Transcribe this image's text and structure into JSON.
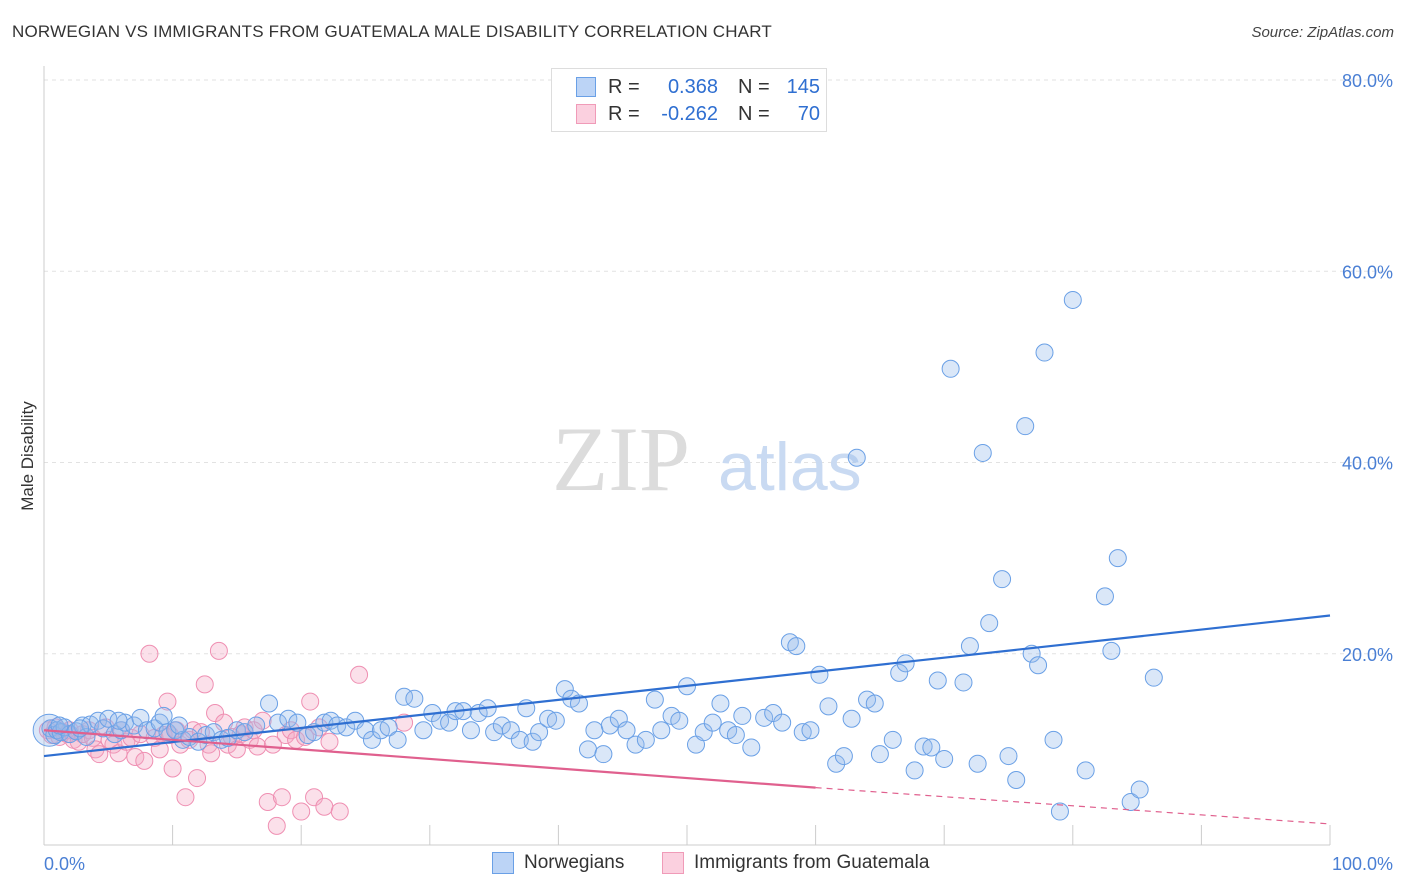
{
  "header": {
    "title": "NORWEGIAN VS IMMIGRANTS FROM GUATEMALA MALE DISABILITY CORRELATION CHART",
    "source": "Source: ZipAtlas.com"
  },
  "watermark": {
    "part1": "ZIP",
    "part2": "atlas"
  },
  "colors": {
    "blue": "#6aa0e6",
    "blue_line": "#2f6fd1",
    "pink": "#f09bb8",
    "pink_line": "#e0608e",
    "axis_text": "#4a7fd4"
  },
  "legend": {
    "rows": [
      {
        "r_label": "R =",
        "r_value": "0.368",
        "n_label": "N =",
        "n_value": "145"
      },
      {
        "r_label": "R =",
        "r_value": "-0.262",
        "n_label": "N =",
        "n_value": "70"
      }
    ]
  },
  "bottom_legend": {
    "series1": "Norwegians",
    "series2": "Immigrants from Guatemala"
  },
  "chart_data": {
    "type": "scatter",
    "title": "NORWEGIAN VS IMMIGRANTS FROM GUATEMALA MALE DISABILITY CORRELATION CHART",
    "xlabel": "",
    "ylabel": "Male Disability",
    "xlim": [
      0,
      100
    ],
    "ylim": [
      0,
      80
    ],
    "x_tick_labels": [
      "0.0%",
      "100.0%"
    ],
    "y_ticks": [
      20,
      40,
      60,
      80
    ],
    "y_tick_labels": [
      "20.0%",
      "40.0%",
      "60.0%",
      "80.0%"
    ],
    "grid": true,
    "legend_position": "top-center",
    "series": [
      {
        "name": "Norwegians",
        "r": 0.368,
        "n": 145,
        "trend": {
          "x": [
            0,
            100
          ],
          "y": [
            9.3,
            24.0
          ],
          "style": "solid"
        },
        "points": [
          [
            0.5,
            12.2
          ],
          [
            0.8,
            11.5
          ],
          [
            1.0,
            12.0
          ],
          [
            1.3,
            11.8
          ],
          [
            1.6,
            12.3
          ],
          [
            2.0,
            11.6
          ],
          [
            2.5,
            11.9
          ],
          [
            3.0,
            12.5
          ],
          [
            3.3,
            11.3
          ],
          [
            3.6,
            12.6
          ],
          [
            4.2,
            13.0
          ],
          [
            4.6,
            12.2
          ],
          [
            5.0,
            13.2
          ],
          [
            5.5,
            11.6
          ],
          [
            6.0,
            12.0
          ],
          [
            6.3,
            12.8
          ],
          [
            7.0,
            12.5
          ],
          [
            7.5,
            13.3
          ],
          [
            8.0,
            12.0
          ],
          [
            8.6,
            12.2
          ],
          [
            9.0,
            12.8
          ],
          [
            9.6,
            11.8
          ],
          [
            10.2,
            12.0
          ],
          [
            10.8,
            11.0
          ],
          [
            11.3,
            11.3
          ],
          [
            12.0,
            10.8
          ],
          [
            12.6,
            11.5
          ],
          [
            13.2,
            11.8
          ],
          [
            13.8,
            11.0
          ],
          [
            14.3,
            11.2
          ],
          [
            15.0,
            12.0
          ],
          [
            15.6,
            11.8
          ],
          [
            16.5,
            12.5
          ],
          [
            17.5,
            14.8
          ],
          [
            18.2,
            12.8
          ],
          [
            19.0,
            13.2
          ],
          [
            19.7,
            12.8
          ],
          [
            20.5,
            11.5
          ],
          [
            21.0,
            11.8
          ],
          [
            21.8,
            12.8
          ],
          [
            22.3,
            13.0
          ],
          [
            22.8,
            12.5
          ],
          [
            23.5,
            12.3
          ],
          [
            24.2,
            13.0
          ],
          [
            25.0,
            12.0
          ],
          [
            25.5,
            11.0
          ],
          [
            26.2,
            12.0
          ],
          [
            26.8,
            12.3
          ],
          [
            27.5,
            11.0
          ],
          [
            28.0,
            15.5
          ],
          [
            28.8,
            15.3
          ],
          [
            29.5,
            12.0
          ],
          [
            30.2,
            13.8
          ],
          [
            30.8,
            13.0
          ],
          [
            31.5,
            12.8
          ],
          [
            32.0,
            14.0
          ],
          [
            32.6,
            14.0
          ],
          [
            33.2,
            12.0
          ],
          [
            33.8,
            13.8
          ],
          [
            34.5,
            14.3
          ],
          [
            35.0,
            11.8
          ],
          [
            35.6,
            12.5
          ],
          [
            36.3,
            12.0
          ],
          [
            37.0,
            11.0
          ],
          [
            37.5,
            14.3
          ],
          [
            38.0,
            10.8
          ],
          [
            38.5,
            11.8
          ],
          [
            39.2,
            13.2
          ],
          [
            39.8,
            13.0
          ],
          [
            40.5,
            16.3
          ],
          [
            41.0,
            15.3
          ],
          [
            41.6,
            14.8
          ],
          [
            42.3,
            10.0
          ],
          [
            42.8,
            12.0
          ],
          [
            43.5,
            9.5
          ],
          [
            44.0,
            12.5
          ],
          [
            44.7,
            13.2
          ],
          [
            45.3,
            12.0
          ],
          [
            46.0,
            10.5
          ],
          [
            46.8,
            11.0
          ],
          [
            47.5,
            15.2
          ],
          [
            48.0,
            12.0
          ],
          [
            48.8,
            13.5
          ],
          [
            49.4,
            13.0
          ],
          [
            50.0,
            16.6
          ],
          [
            50.7,
            10.5
          ],
          [
            51.3,
            11.8
          ],
          [
            52.0,
            12.8
          ],
          [
            52.6,
            14.8
          ],
          [
            53.2,
            12.0
          ],
          [
            53.8,
            11.5
          ],
          [
            54.3,
            13.5
          ],
          [
            55.0,
            10.2
          ],
          [
            56.0,
            13.3
          ],
          [
            56.7,
            13.8
          ],
          [
            57.4,
            12.8
          ],
          [
            58.0,
            21.2
          ],
          [
            58.5,
            20.8
          ],
          [
            59.0,
            11.8
          ],
          [
            59.6,
            12.0
          ],
          [
            60.3,
            17.8
          ],
          [
            61.0,
            14.5
          ],
          [
            61.6,
            8.5
          ],
          [
            62.2,
            9.3
          ],
          [
            62.8,
            13.2
          ],
          [
            63.2,
            40.5
          ],
          [
            64.0,
            15.2
          ],
          [
            64.6,
            14.8
          ],
          [
            65.0,
            9.5
          ],
          [
            66.0,
            11.0
          ],
          [
            66.5,
            18.0
          ],
          [
            67.0,
            19.0
          ],
          [
            67.7,
            7.8
          ],
          [
            68.4,
            10.3
          ],
          [
            69.0,
            10.2
          ],
          [
            69.5,
            17.2
          ],
          [
            70.0,
            9.0
          ],
          [
            70.5,
            49.8
          ],
          [
            71.5,
            17.0
          ],
          [
            72.0,
            20.8
          ],
          [
            72.6,
            8.5
          ],
          [
            73.0,
            41.0
          ],
          [
            73.5,
            23.2
          ],
          [
            74.5,
            27.8
          ],
          [
            75.0,
            9.3
          ],
          [
            75.6,
            6.8
          ],
          [
            76.3,
            43.8
          ],
          [
            76.8,
            20.0
          ],
          [
            77.3,
            18.8
          ],
          [
            77.8,
            51.5
          ],
          [
            78.5,
            11.0
          ],
          [
            79.0,
            3.5
          ],
          [
            80.0,
            57.0
          ],
          [
            81.0,
            7.8
          ],
          [
            82.5,
            26.0
          ],
          [
            83.0,
            20.3
          ],
          [
            83.5,
            30.0
          ],
          [
            84.5,
            4.5
          ],
          [
            85.2,
            5.8
          ],
          [
            86.3,
            17.5
          ],
          [
            1.2,
            12.5
          ],
          [
            2.8,
            12.2
          ],
          [
            5.8,
            13.0
          ],
          [
            9.3,
            13.5
          ],
          [
            10.5,
            12.5
          ]
        ]
      },
      {
        "name": "Immigrants from Guatemala",
        "r": -0.262,
        "n": 70,
        "trend": {
          "x": [
            0,
            60,
            100
          ],
          "y": [
            12.0,
            6.0,
            2.2
          ],
          "style": "solid-then-dashed"
        },
        "points": [
          [
            0.3,
            12.0
          ],
          [
            0.6,
            11.5
          ],
          [
            0.9,
            12.3
          ],
          [
            1.2,
            11.3
          ],
          [
            1.5,
            11.8
          ],
          [
            1.8,
            11.6
          ],
          [
            2.0,
            12.0
          ],
          [
            2.3,
            11.0
          ],
          [
            2.7,
            10.8
          ],
          [
            3.0,
            11.6
          ],
          [
            3.5,
            12.0
          ],
          [
            3.8,
            11.2
          ],
          [
            4.0,
            10.0
          ],
          [
            4.3,
            9.5
          ],
          [
            4.8,
            12.3
          ],
          [
            5.1,
            11.0
          ],
          [
            5.4,
            10.5
          ],
          [
            5.8,
            9.6
          ],
          [
            6.0,
            12.0
          ],
          [
            6.4,
            10.8
          ],
          [
            6.8,
            11.2
          ],
          [
            7.1,
            9.2
          ],
          [
            7.5,
            11.6
          ],
          [
            7.8,
            8.8
          ],
          [
            8.2,
            20.0
          ],
          [
            8.6,
            11.2
          ],
          [
            9.0,
            10.0
          ],
          [
            9.3,
            11.5
          ],
          [
            9.6,
            15.0
          ],
          [
            9.8,
            11.5
          ],
          [
            10.0,
            8.0
          ],
          [
            10.3,
            12.0
          ],
          [
            10.6,
            10.5
          ],
          [
            11.0,
            5.0
          ],
          [
            11.3,
            11.0
          ],
          [
            11.6,
            12.0
          ],
          [
            11.9,
            7.0
          ],
          [
            12.2,
            11.8
          ],
          [
            12.5,
            16.8
          ],
          [
            12.8,
            10.5
          ],
          [
            13.0,
            9.6
          ],
          [
            13.3,
            13.8
          ],
          [
            13.6,
            20.3
          ],
          [
            14.0,
            12.8
          ],
          [
            14.3,
            10.5
          ],
          [
            14.6,
            11.3
          ],
          [
            15.0,
            10.0
          ],
          [
            15.3,
            11.6
          ],
          [
            15.6,
            12.3
          ],
          [
            16.0,
            11.0
          ],
          [
            16.3,
            12.0
          ],
          [
            16.6,
            10.3
          ],
          [
            17.0,
            13.0
          ],
          [
            17.4,
            4.5
          ],
          [
            17.8,
            10.5
          ],
          [
            18.1,
            2.0
          ],
          [
            18.5,
            5.0
          ],
          [
            18.8,
            11.5
          ],
          [
            19.2,
            12.0
          ],
          [
            19.6,
            11.0
          ],
          [
            20.0,
            3.5
          ],
          [
            20.3,
            11.3
          ],
          [
            20.7,
            15.0
          ],
          [
            21.0,
            5.0
          ],
          [
            21.4,
            12.3
          ],
          [
            21.8,
            4.0
          ],
          [
            22.2,
            10.8
          ],
          [
            23.0,
            3.5
          ],
          [
            24.5,
            17.8
          ],
          [
            28.0,
            12.8
          ]
        ]
      }
    ]
  }
}
